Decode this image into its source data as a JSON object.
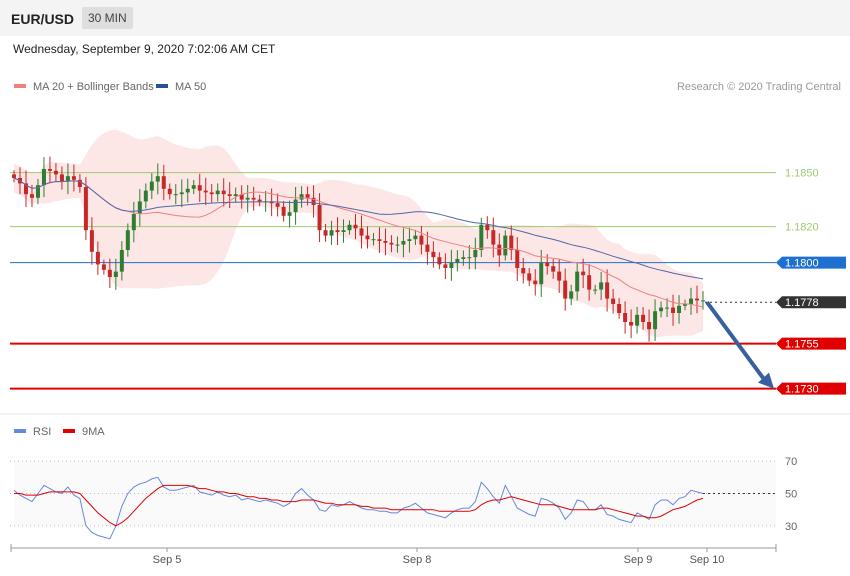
{
  "header": {
    "pair": "EUR/USD",
    "timeframe": "30 MIN"
  },
  "date_line": "Wednesday, September 9, 2020 7:02:06 AM CET",
  "legend": {
    "ma20": "MA 20 + Bollinger Bands",
    "ma50": "MA 50",
    "credit": "Research © 2020 Trading Central"
  },
  "rsi_legend": {
    "rsi": "RSI",
    "ma9": "9MA"
  },
  "colors": {
    "up": "#2e7d32",
    "down": "#c62828",
    "band": "#fde2e2",
    "ma20": "#f08080",
    "ma50": "#5068a8",
    "resistance": "#9acd6e",
    "pivot": "#1e6fd0",
    "support": "#e00000",
    "arrow": "#3860a0",
    "rsi": "#6688dd",
    "rsi_ma": "#e00000"
  },
  "chart_data": [
    {
      "type": "candlestick",
      "title": "EUR/USD",
      "x_tick_labels": [
        "Sep 5",
        "Sep 8",
        "Sep 9",
        "Sep 10"
      ],
      "ylim": [
        1.1717,
        1.1892
      ],
      "levels": [
        {
          "value": 1.185,
          "label": "1.1850",
          "kind": "resistance"
        },
        {
          "value": 1.182,
          "label": "1.1820",
          "kind": "resistance"
        },
        {
          "value": 1.18,
          "label": "1.1800",
          "kind": "pivot"
        },
        {
          "value": 1.1778,
          "label": "1.1778",
          "kind": "last"
        },
        {
          "value": 1.1755,
          "label": "1.1755",
          "kind": "support"
        },
        {
          "value": 1.173,
          "label": "1.1730",
          "kind": "support"
        }
      ],
      "forecast_arrow": {
        "from": 1.1778,
        "to": 1.173
      },
      "price_path": [
        1.1847,
        1.1844,
        1.1838,
        1.1836,
        1.1843,
        1.1852,
        1.1851,
        1.1849,
        1.1845,
        1.1848,
        1.1846,
        1.1842,
        1.1818,
        1.1806,
        1.1799,
        1.1796,
        1.1792,
        1.1795,
        1.1807,
        1.1818,
        1.1827,
        1.1834,
        1.184,
        1.1845,
        1.1848,
        1.1841,
        1.1838,
        1.1838,
        1.1839,
        1.1841,
        1.1843,
        1.184,
        1.1839,
        1.1838,
        1.184,
        1.1838,
        1.1837,
        1.1838,
        1.1835,
        1.1836,
        1.1835,
        1.1834,
        1.1834,
        1.1833,
        1.1831,
        1.1826,
        1.1828,
        1.1835,
        1.1838,
        1.1836,
        1.1832,
        1.1818,
        1.1815,
        1.1818,
        1.1817,
        1.1818,
        1.1821,
        1.1819,
        1.1815,
        1.1813,
        1.1813,
        1.1812,
        1.1811,
        1.181,
        1.181,
        1.1812,
        1.1813,
        1.1815,
        1.181,
        1.1806,
        1.1803,
        1.1799,
        1.1797,
        1.18,
        1.1802,
        1.1803,
        1.1803,
        1.1807,
        1.1821,
        1.1818,
        1.181,
        1.1804,
        1.1815,
        1.1807,
        1.1797,
        1.1794,
        1.179,
        1.1788,
        1.18,
        1.1798,
        1.1795,
        1.179,
        1.178,
        1.1784,
        1.1795,
        1.1793,
        1.1785,
        1.1785,
        1.1789,
        1.178,
        1.1777,
        1.1772,
        1.1767,
        1.1765,
        1.1771,
        1.1767,
        1.1763,
        1.1773,
        1.1775,
        1.1775,
        1.1772,
        1.1776,
        1.1777,
        1.178,
        1.1779,
        1.1779
      ]
    },
    {
      "type": "line",
      "title": "RSI",
      "ylim": [
        20,
        80
      ],
      "y_ticks": [
        30,
        50,
        70
      ],
      "series": [
        {
          "name": "RSI",
          "values": [
            52,
            49,
            47,
            45,
            50,
            55,
            53,
            51,
            50,
            54,
            49,
            47,
            30,
            26,
            24,
            23,
            22,
            30,
            42,
            50,
            54,
            56,
            57,
            59,
            60,
            54,
            52,
            52,
            53,
            54,
            55,
            51,
            50,
            49,
            51,
            49,
            48,
            49,
            46,
            47,
            46,
            45,
            46,
            45,
            44,
            42,
            44,
            50,
            53,
            49,
            46,
            40,
            39,
            43,
            42,
            43,
            45,
            43,
            41,
            40,
            40,
            39,
            39,
            38,
            38,
            41,
            42,
            44,
            41,
            38,
            37,
            36,
            35,
            38,
            40,
            41,
            41,
            45,
            57,
            53,
            48,
            44,
            55,
            48,
            41,
            39,
            37,
            36,
            47,
            46,
            44,
            41,
            34,
            38,
            46,
            45,
            40,
            40,
            43,
            37,
            36,
            34,
            33,
            32,
            38,
            36,
            34,
            43,
            46,
            46,
            43,
            47,
            48,
            52,
            51,
            50
          ]
        },
        {
          "name": "9MA",
          "values": [
            50,
            50,
            49,
            49,
            49,
            50,
            51,
            51,
            51,
            51,
            51,
            50,
            46,
            42,
            38,
            35,
            32,
            30,
            32,
            35,
            39,
            43,
            47,
            50,
            53,
            55,
            55,
            55,
            55,
            55,
            54,
            53,
            53,
            52,
            51,
            51,
            50,
            50,
            49,
            48,
            48,
            47,
            47,
            46,
            46,
            45,
            45,
            45,
            46,
            46,
            46,
            45,
            44,
            44,
            43,
            43,
            43,
            43,
            42,
            42,
            41,
            41,
            41,
            40,
            40,
            40,
            40,
            40,
            40,
            40,
            40,
            39,
            39,
            39,
            39,
            39,
            39,
            40,
            43,
            45,
            46,
            46,
            47,
            48,
            47,
            46,
            45,
            44,
            43,
            43,
            43,
            42,
            41,
            40,
            40,
            40,
            40,
            40,
            41,
            41,
            40,
            39,
            38,
            37,
            36,
            36,
            35,
            35,
            36,
            38,
            40,
            41,
            42,
            44,
            46,
            47
          ]
        }
      ]
    }
  ]
}
